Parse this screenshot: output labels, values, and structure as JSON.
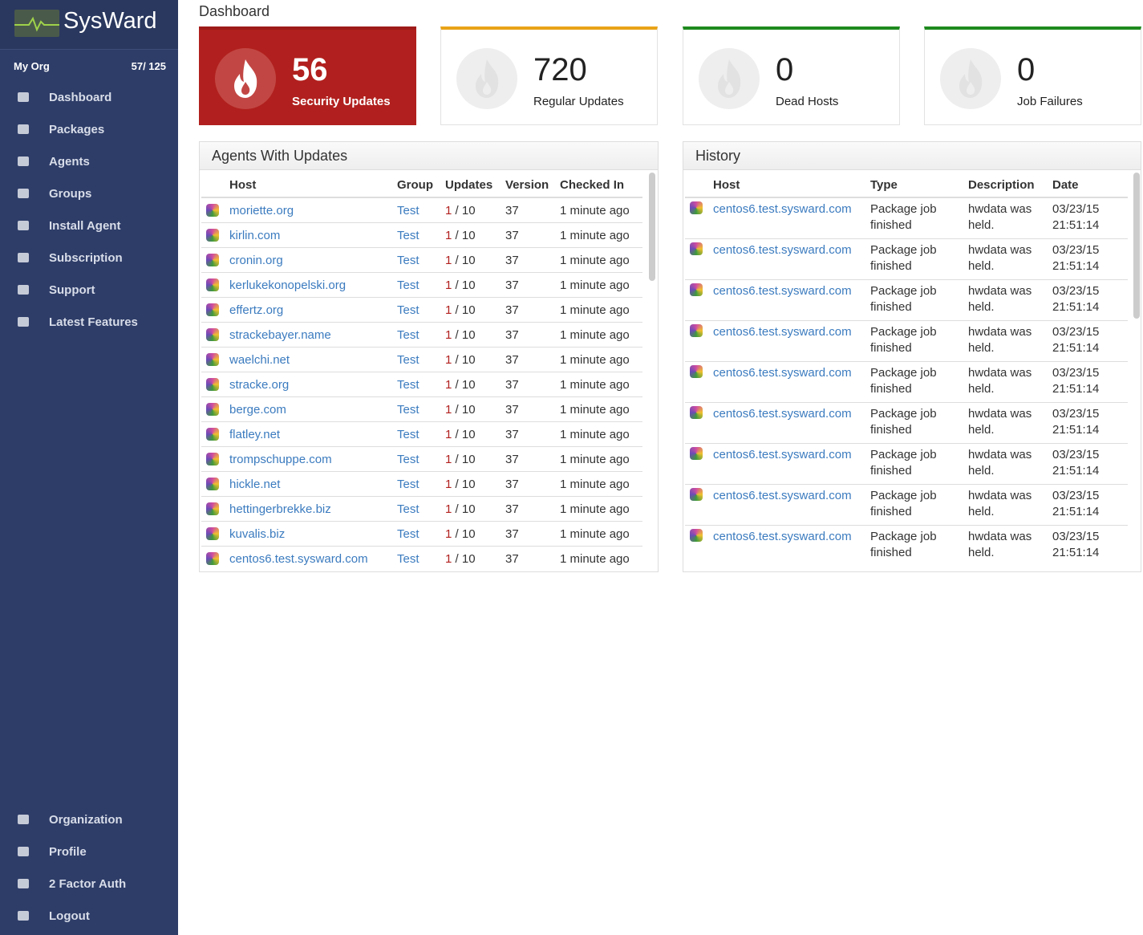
{
  "sidebar": {
    "brand": "SysWard",
    "org": "My Org",
    "count": "57/ 125",
    "nav": [
      "Dashboard",
      "Packages",
      "Agents",
      "Groups",
      "Install Agent",
      "Subscription",
      "Support",
      "Latest Features"
    ],
    "bottom_nav": [
      "Organization",
      "Profile",
      "2 Factor Auth",
      "Logout"
    ]
  },
  "header": {
    "title": "Dashboard"
  },
  "stats": [
    {
      "value": 56,
      "label": "Security Updates"
    },
    {
      "value": 720,
      "label": "Regular Updates"
    },
    {
      "value": 0,
      "label": "Dead Hosts"
    },
    {
      "value": 0,
      "label": "Job Failures"
    }
  ],
  "agents": {
    "title": "Agents With Updates",
    "columns": [
      "Host",
      "Group",
      "Updates",
      "Version",
      "Checked In"
    ],
    "rows": [
      [
        "moriette.org",
        "Test",
        "1",
        "/ 10",
        "37",
        "1 minute ago"
      ],
      [
        "kirlin.com",
        "Test",
        "1",
        "/ 10",
        "37",
        "1 minute ago"
      ],
      [
        "cronin.org",
        "Test",
        "1",
        "/ 10",
        "37",
        "1 minute ago"
      ],
      [
        "kerlukekonopelski.org",
        "Test",
        "1",
        "/ 10",
        "37",
        "1 minute ago"
      ],
      [
        "effertz.org",
        "Test",
        "1",
        "/ 10",
        "37",
        "1 minute ago"
      ],
      [
        "strackebayer.name",
        "Test",
        "1",
        "/ 10",
        "37",
        "1 minute ago"
      ],
      [
        "waelchi.net",
        "Test",
        "1",
        "/ 10",
        "37",
        "1 minute ago"
      ],
      [
        "stracke.org",
        "Test",
        "1",
        "/ 10",
        "37",
        "1 minute ago"
      ],
      [
        "berge.com",
        "Test",
        "1",
        "/ 10",
        "37",
        "1 minute ago"
      ],
      [
        "flatley.net",
        "Test",
        "1",
        "/ 10",
        "37",
        "1 minute ago"
      ],
      [
        "trompschuppe.com",
        "Test",
        "1",
        "/ 10",
        "37",
        "1 minute ago"
      ],
      [
        "hickle.net",
        "Test",
        "1",
        "/ 10",
        "37",
        "1 minute ago"
      ],
      [
        "hettingerbrekke.biz",
        "Test",
        "1",
        "/ 10",
        "37",
        "1 minute ago"
      ],
      [
        "kuvalis.biz",
        "Test",
        "1",
        "/ 10",
        "37",
        "1 minute ago"
      ],
      [
        "centos6.test.sysward.com",
        "Test",
        "1",
        "/ 10",
        "37",
        "1 minute ago"
      ]
    ]
  },
  "history": {
    "title": "History",
    "columns": [
      "Host",
      "Type",
      "Description",
      "Date"
    ],
    "rows": [
      [
        "centos6.test.sysward.com",
        "Package job finished",
        "hwdata was held.",
        "03/23/15 21:51:14"
      ],
      [
        "centos6.test.sysward.com",
        "Package job finished",
        "hwdata was held.",
        "03/23/15 21:51:14"
      ],
      [
        "centos6.test.sysward.com",
        "Package job finished",
        "hwdata was held.",
        "03/23/15 21:51:14"
      ],
      [
        "centos6.test.sysward.com",
        "Package job finished",
        "hwdata was held.",
        "03/23/15 21:51:14"
      ],
      [
        "centos6.test.sysward.com",
        "Package job finished",
        "hwdata was held.",
        "03/23/15 21:51:14"
      ],
      [
        "centos6.test.sysward.com",
        "Package job finished",
        "hwdata was held.",
        "03/23/15 21:51:14"
      ],
      [
        "centos6.test.sysward.com",
        "Package job finished",
        "hwdata was held.",
        "03/23/15 21:51:14"
      ],
      [
        "centos6.test.sysward.com",
        "Package job finished",
        "hwdata was held.",
        "03/23/15 21:51:14"
      ],
      [
        "centos6.test.sysward.com",
        "Package job finished",
        "hwdata was held.",
        "03/23/15 21:51:14"
      ]
    ]
  }
}
